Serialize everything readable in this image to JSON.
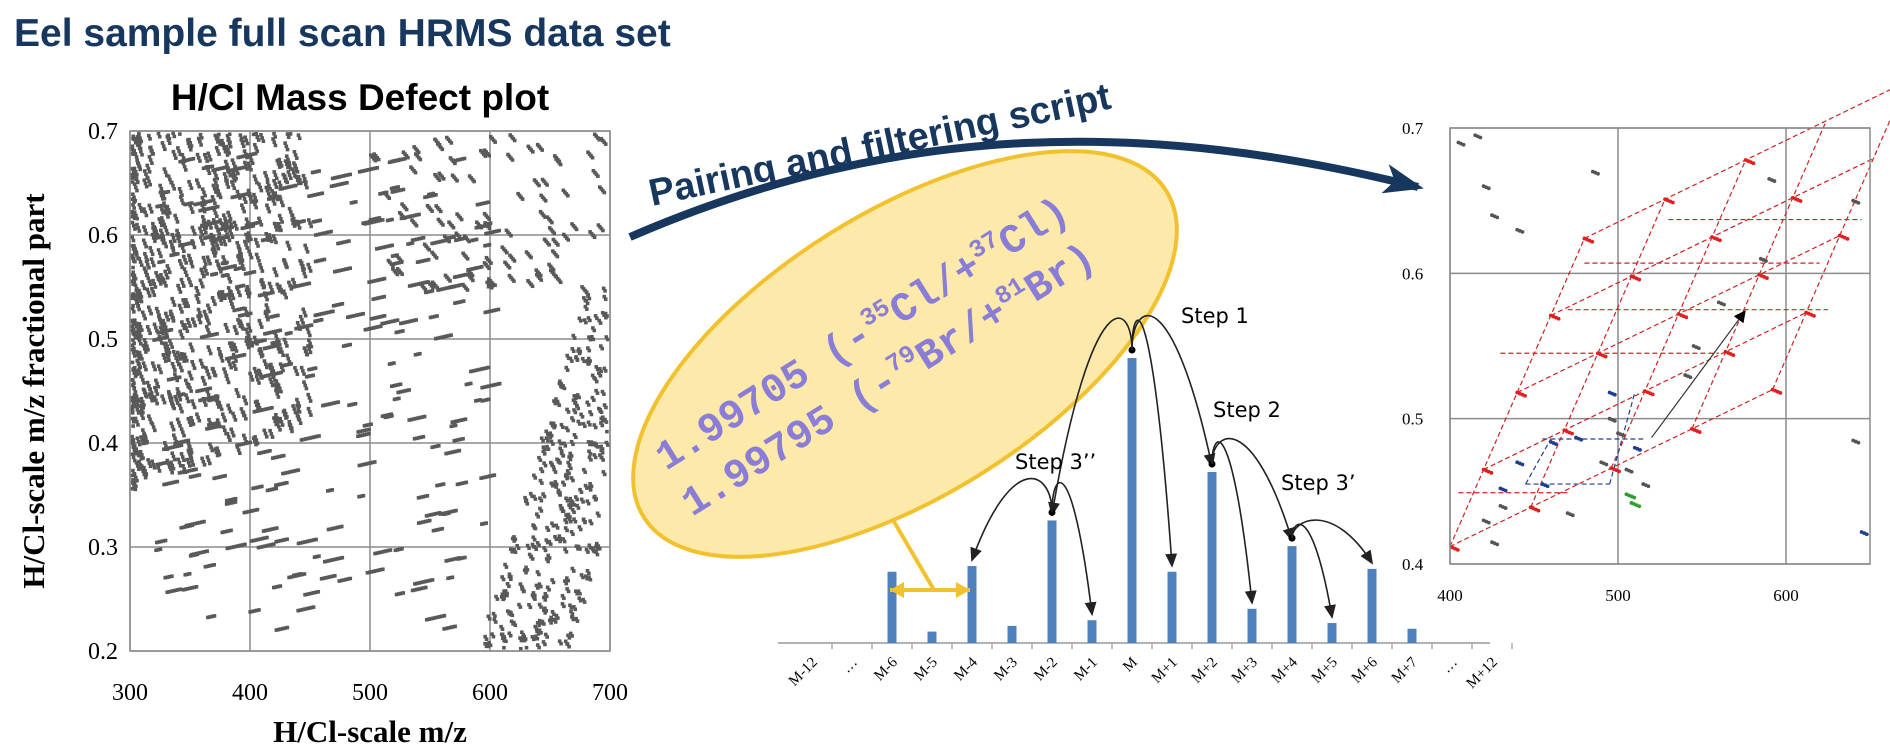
{
  "page_title": "Eel sample full scan HRMS data set",
  "left_plot": {
    "title": "H/Cl Mass Defect plot",
    "xlabel": "H/Cl-scale m/z",
    "ylabel": "H/Cl-scale m/z fractional part",
    "x_ticks": [
      "300",
      "400",
      "500",
      "600",
      "700"
    ],
    "y_ticks": [
      "0.7",
      "0.6",
      "0.5",
      "0.4",
      "0.3",
      "0.2"
    ],
    "xlim": [
      300,
      700
    ],
    "ylim": [
      0.2,
      0.7
    ],
    "grid": true,
    "point_color": "#595959"
  },
  "arrow": {
    "label": "Pairing and filtering script",
    "color": "#17375e"
  },
  "ellipse": {
    "line1_prefix": "1.99705 (-",
    "line1_sup1": "35",
    "line1_mid": "Cl/+",
    "line1_sup2": "37",
    "line1_suffix": "Cl)",
    "line2_prefix": "1.99795 (-",
    "line2_sup1": "79",
    "line2_mid": "Br/+",
    "line2_sup2": "81",
    "line2_suffix": "Br)",
    "fill": "#fde9a9",
    "border": "#f2c12e"
  },
  "isotope_chart": {
    "bar_color": "#4f81bd",
    "steps": [
      "Step 1",
      "Step 2",
      "Step 3’",
      "Step 3’’"
    ],
    "labels": [
      "M-12",
      "…",
      "M-6",
      "M-5",
      "M-4",
      "M-3",
      "M-2",
      "M-1",
      "M",
      "M+1",
      "M+2",
      "M+3",
      "M+4",
      "M+5",
      "M+6",
      "M+7",
      "…",
      "M+12"
    ],
    "values": [
      0,
      0,
      0.25,
      0.04,
      0.27,
      0.06,
      0.43,
      0.08,
      1.0,
      0.25,
      0.6,
      0.12,
      0.34,
      0.07,
      0.26,
      0.05,
      0,
      0
    ]
  },
  "right_plot": {
    "x_ticks": [
      "400",
      "500",
      "600"
    ],
    "y_ticks": [
      "0.7",
      "0.6",
      "0.5",
      "0.4"
    ],
    "xlim": [
      400,
      650
    ],
    "ylim": [
      0.4,
      0.7
    ],
    "grid": true,
    "series_colors": [
      "#e02020",
      "#1f3f8f",
      "#555555",
      "#2e9e2e"
    ],
    "link_color": "#cc2222"
  }
}
